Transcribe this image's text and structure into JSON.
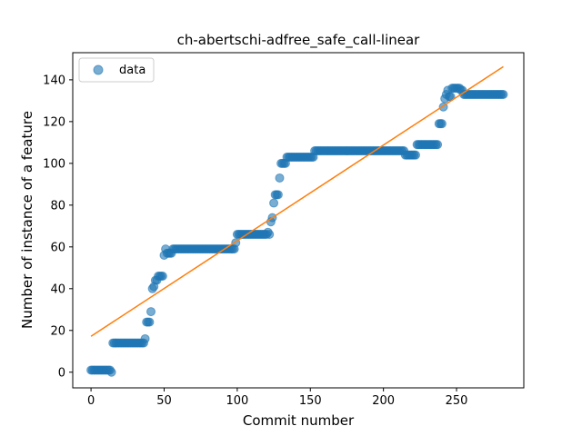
{
  "chart_data": {
    "type": "scatter",
    "title": "ch-abertschi-adfree_safe_call-linear",
    "xlabel": "Commit number",
    "ylabel": "Number of instance of a feature",
    "xlim": [
      -12.5,
      296
    ],
    "ylim": [
      -7.5,
      153
    ],
    "xticks": [
      0,
      50,
      100,
      150,
      200,
      250
    ],
    "yticks": [
      0,
      20,
      40,
      60,
      80,
      100,
      120,
      140
    ],
    "grid": false,
    "legend_position": "top-left",
    "colors": {
      "data": "#1f77b4",
      "fit": "#ff7f0e"
    },
    "series": [
      {
        "name": "data",
        "kind": "scatter",
        "segments": [
          {
            "x_start": 0,
            "x_end": 13,
            "y": 1
          },
          {
            "x_start": 14,
            "x_end": 14,
            "y": 0
          },
          {
            "x_start": 15,
            "x_end": 36,
            "y": 14
          },
          {
            "x_start": 37,
            "x_end": 37,
            "y": 16
          },
          {
            "x_start": 38,
            "x_end": 40,
            "y": 24
          },
          {
            "x_start": 41,
            "x_end": 41,
            "y": 29
          },
          {
            "x_start": 42,
            "x_end": 42,
            "y": 40
          },
          {
            "x_start": 43,
            "x_end": 43,
            "y": 41
          },
          {
            "x_start": 44,
            "x_end": 45,
            "y": 44
          },
          {
            "x_start": 46,
            "x_end": 49,
            "y": 46
          },
          {
            "x_start": 50,
            "x_end": 50,
            "y": 56
          },
          {
            "x_start": 51,
            "x_end": 51,
            "y": 59
          },
          {
            "x_start": 52,
            "x_end": 55,
            "y": 57
          },
          {
            "x_start": 56,
            "x_end": 98,
            "y": 59
          },
          {
            "x_start": 99,
            "x_end": 99,
            "y": 62
          },
          {
            "x_start": 100,
            "x_end": 120,
            "y": 66
          },
          {
            "x_start": 121,
            "x_end": 121,
            "y": 67
          },
          {
            "x_start": 122,
            "x_end": 122,
            "y": 66
          },
          {
            "x_start": 123,
            "x_end": 123,
            "y": 72
          },
          {
            "x_start": 124,
            "x_end": 124,
            "y": 74
          },
          {
            "x_start": 125,
            "x_end": 125,
            "y": 81
          },
          {
            "x_start": 126,
            "x_end": 128,
            "y": 85
          },
          {
            "x_start": 129,
            "x_end": 129,
            "y": 93
          },
          {
            "x_start": 130,
            "x_end": 133,
            "y": 100
          },
          {
            "x_start": 134,
            "x_end": 152,
            "y": 103
          },
          {
            "x_start": 153,
            "x_end": 214,
            "y": 106
          },
          {
            "x_start": 215,
            "x_end": 222,
            "y": 104
          },
          {
            "x_start": 223,
            "x_end": 237,
            "y": 109
          },
          {
            "x_start": 238,
            "x_end": 240,
            "y": 119
          },
          {
            "x_start": 241,
            "x_end": 241,
            "y": 127
          },
          {
            "x_start": 242,
            "x_end": 242,
            "y": 131
          },
          {
            "x_start": 243,
            "x_end": 243,
            "y": 133
          },
          {
            "x_start": 244,
            "x_end": 244,
            "y": 135
          },
          {
            "x_start": 245,
            "x_end": 246,
            "y": 132
          },
          {
            "x_start": 247,
            "x_end": 252,
            "y": 136
          },
          {
            "x_start": 253,
            "x_end": 254,
            "y": 135
          },
          {
            "x_start": 255,
            "x_end": 282,
            "y": 133
          }
        ]
      },
      {
        "name": "",
        "kind": "line",
        "x": [
          0,
          282
        ],
        "y": [
          17.2,
          146.3
        ]
      }
    ]
  }
}
